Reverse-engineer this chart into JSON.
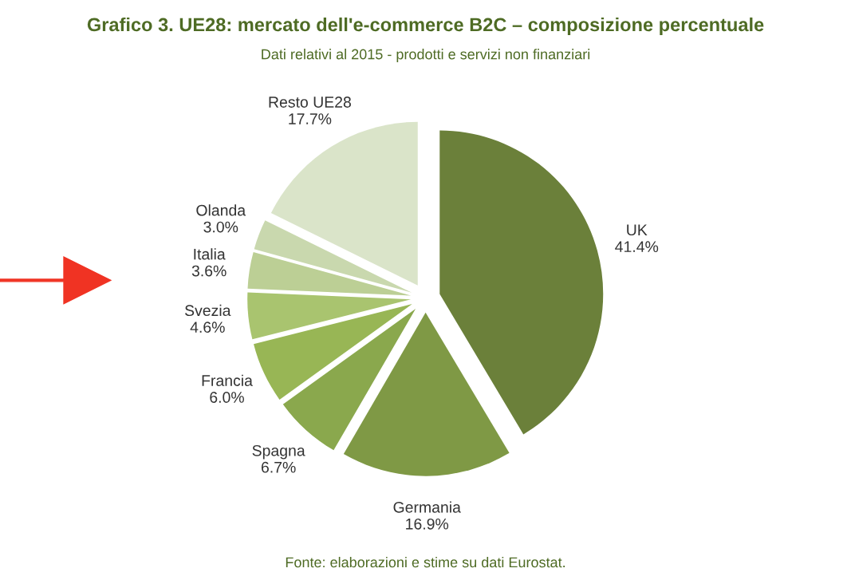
{
  "chart_data": {
    "type": "pie",
    "title": "Grafico 3. UE28: mercato dell'e-commerce B2C – composizione percentuale",
    "subtitle": "Dati relativi al 2015 - prodotti e servizi non finanziari",
    "categories": [
      "UK",
      "Germania",
      "Spagna",
      "Francia",
      "Svezia",
      "Italia",
      "Olanda",
      "Resto UE28"
    ],
    "values": [
      41.4,
      16.9,
      6.7,
      6.0,
      4.6,
      3.6,
      3.0,
      17.7
    ],
    "value_labels": [
      "41.4%",
      "16.9%",
      "6.7%",
      "6.0%",
      "4.6%",
      "3.6%",
      "3.0%",
      "17.7%"
    ],
    "colors": [
      "#6b803a",
      "#7f9945",
      "#8aa84d",
      "#98b655",
      "#a9c46f",
      "#bccf95",
      "#c9d8ae",
      "#dae4c9"
    ],
    "annotations": [
      "Fonte: elaborazioni e stime su dati Eurostat."
    ]
  }
}
